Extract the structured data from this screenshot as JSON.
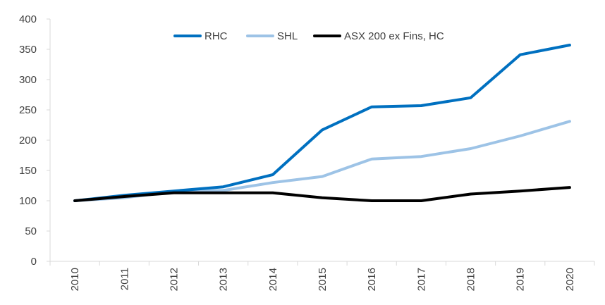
{
  "chart_data": {
    "type": "line",
    "title": "",
    "xlabel": "",
    "ylabel": "",
    "categories": [
      "2010",
      "2011",
      "2012",
      "2013",
      "2014",
      "2015",
      "2016",
      "2017",
      "2018",
      "2019",
      "2020"
    ],
    "ylim": [
      0,
      400
    ],
    "yticks": [
      0,
      50,
      100,
      150,
      200,
      250,
      300,
      350,
      400
    ],
    "grid": false,
    "legend_position": "top-center",
    "series": [
      {
        "name": "RHC",
        "color": "#0070c0",
        "values": [
          100,
          109,
          116,
          123,
          143,
          217,
          255,
          257,
          270,
          341,
          357
        ]
      },
      {
        "name": "SHL",
        "color": "#9dc3e6",
        "values": [
          100,
          105,
          115,
          117,
          130,
          140,
          169,
          173,
          186,
          207,
          231
        ]
      },
      {
        "name": "ASX 200 ex Fins, HC",
        "color": "#000000",
        "values": [
          100,
          107,
          113,
          113,
          113,
          105,
          100,
          100,
          111,
          116,
          122
        ]
      }
    ]
  }
}
